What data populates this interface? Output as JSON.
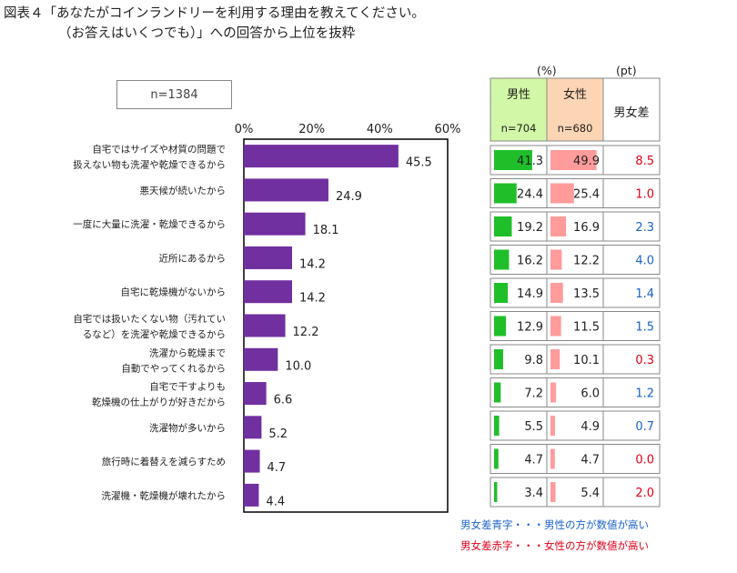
{
  "title": {
    "line1": "図表４「あなたがコインランドリーを利用する理由を教えてください。",
    "line2": "（お答えはいくつでも）」への回答から上位を抜粋"
  },
  "sample_label": "n=1384",
  "units": {
    "pct": "(%)",
    "pt": "(pt)"
  },
  "table_headers": {
    "male": "男性",
    "male_n": "n=704",
    "female": "女性",
    "female_n": "n=680",
    "diff": "男女差"
  },
  "legend": {
    "blue": "男女差青字・・・男性の方が数値が高い",
    "red": "男女差赤字・・・女性の方が数値が高い"
  },
  "colors": {
    "bar": "#7030a0",
    "male_bar": "#1fbf2a",
    "female_bar": "#ff9b9b",
    "male_header_bg": "#d2f7a6",
    "female_header_bg": "#fcd5b4",
    "diff_blue": "#1a63c9",
    "diff_red": "#e0001a"
  },
  "chart_data": {
    "type": "bar",
    "orientation": "horizontal",
    "xlim": [
      0,
      60
    ],
    "xticks": [
      "0%",
      "20%",
      "40%",
      "60%"
    ],
    "categories": [
      [
        "自宅ではサイズや材質の問題で",
        "扱えない物も洗濯や乾燥できるから"
      ],
      [
        "悪天候が続いたから"
      ],
      [
        "一度に大量に洗濯・乾燥できるから"
      ],
      [
        "近所にあるから"
      ],
      [
        "自宅に乾燥機がないから"
      ],
      [
        "自宅では扱いたくない物（汚れてい",
        "るなど）を洗濯や乾燥できるから"
      ],
      [
        "洗濯から乾燥まで",
        "自動でやってくれるから"
      ],
      [
        "自宅で干すよりも",
        "乾燥機の仕上がりが好きだから"
      ],
      [
        "洗濯物が多いから"
      ],
      [
        "旅行時に着替えを減らすため"
      ],
      [
        "洗濯機・乾燥機が壊れたから"
      ]
    ],
    "values": [
      45.5,
      24.9,
      18.1,
      14.2,
      14.2,
      12.2,
      10.0,
      6.6,
      5.2,
      4.7,
      4.4
    ],
    "value_labels": [
      "45.5",
      "24.9",
      "18.1",
      "14.2",
      "14.2",
      "12.2",
      "10.0",
      "6.6",
      "5.2",
      "4.7",
      "4.4"
    ],
    "male": [
      "41.3",
      "24.4",
      "19.2",
      "16.2",
      "14.9",
      "12.9",
      "9.8",
      "7.2",
      "5.5",
      "4.7",
      "3.4"
    ],
    "female": [
      "49.9",
      "25.4",
      "16.9",
      "12.2",
      "13.5",
      "11.5",
      "10.1",
      "6.0",
      "4.9",
      "4.7",
      "5.4"
    ],
    "diff": [
      "8.5",
      "1.0",
      "2.3",
      "4.0",
      "1.4",
      "1.5",
      "0.3",
      "1.2",
      "0.7",
      "0.0",
      "2.0"
    ],
    "diff_color": [
      "red",
      "red",
      "blue",
      "blue",
      "blue",
      "blue",
      "red",
      "blue",
      "blue",
      "red",
      "red"
    ]
  }
}
